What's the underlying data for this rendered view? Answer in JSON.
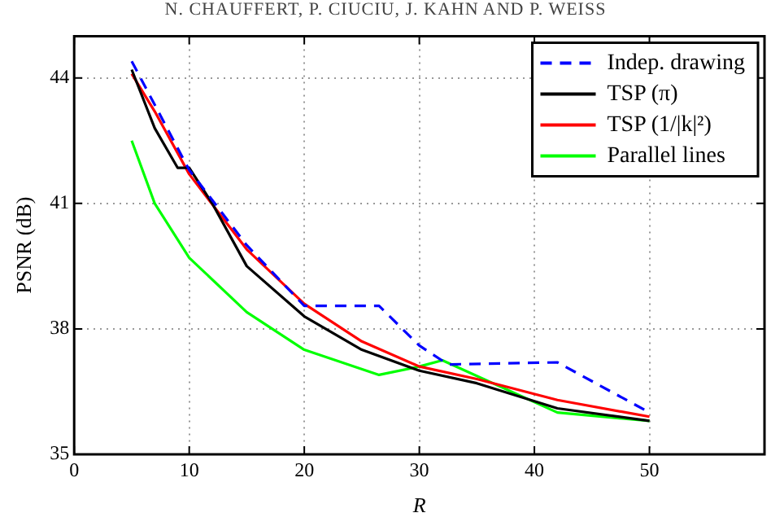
{
  "chart_data": {
    "type": "line",
    "xlabel": "R",
    "ylabel": "PSNR (dB)",
    "annotations": [
      "N. CHAUFFERT, P. CIUCIU, J. KAHN AND P. WEISS"
    ],
    "xlim": [
      0,
      60
    ],
    "xticks": [
      0,
      10,
      20,
      30,
      40,
      50
    ],
    "ylim": [
      35,
      45
    ],
    "yticks": [
      35,
      38,
      41,
      44
    ],
    "grid": true,
    "legend": "top right",
    "marker": "none",
    "series": [
      {
        "name": "Indep. drawing",
        "color": "#0000ff",
        "line_style": "dashed",
        "x": [
          5,
          10,
          15,
          20,
          26.5,
          30,
          32.5,
          42,
          50
        ],
        "values": [
          44.4,
          41.8,
          40.0,
          38.55,
          38.55,
          37.6,
          37.15,
          37.2,
          36.0
        ]
      },
      {
        "name": "TSP (π)",
        "color": "#000000",
        "line_style": "solid",
        "x": [
          5,
          7,
          9,
          10,
          12,
          15,
          20,
          25,
          30,
          35,
          42,
          50
        ],
        "values": [
          44.2,
          42.8,
          41.85,
          41.85,
          41.0,
          39.5,
          38.3,
          37.5,
          37.0,
          36.7,
          36.1,
          35.8
        ]
      },
      {
        "name": "TSP (1/|k|²)",
        "color": "#ff0000",
        "line_style": "solid",
        "x": [
          5,
          7,
          10,
          15,
          20,
          25,
          30,
          35,
          42,
          50
        ],
        "values": [
          44.1,
          43.2,
          41.7,
          39.9,
          38.6,
          37.7,
          37.1,
          36.8,
          36.3,
          35.9
        ]
      },
      {
        "name": "Parallel lines",
        "color": "#00ff00",
        "line_style": "solid",
        "x": [
          5,
          7,
          10,
          15,
          20,
          26.5,
          30,
          32,
          42,
          50
        ],
        "values": [
          42.5,
          41.0,
          39.7,
          38.4,
          37.5,
          36.9,
          37.1,
          37.25,
          36.0,
          35.8
        ]
      }
    ]
  }
}
